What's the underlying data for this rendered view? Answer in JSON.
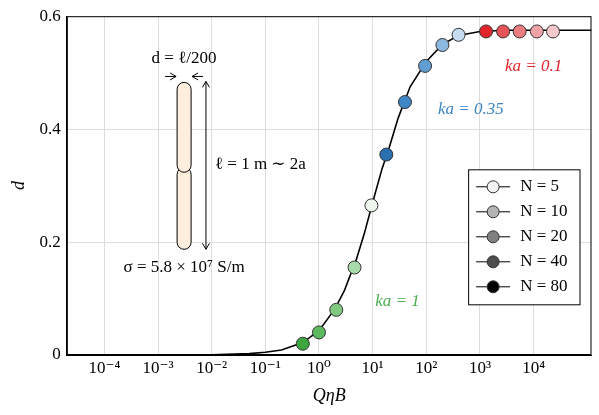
{
  "chart_data": {
    "type": "scatter",
    "x_label": "QηB",
    "y_label": "d",
    "log": "x",
    "grid": true,
    "legend": "right",
    "xlim": [
      2e-05,
      120000
    ],
    "ylim": [
      0,
      0.6
    ],
    "xticks": [
      {
        "value": 0.0001,
        "label": "10⁻⁴"
      },
      {
        "value": 0.001,
        "label": "10⁻³"
      },
      {
        "value": 0.01,
        "label": "10⁻²"
      },
      {
        "value": 0.1,
        "label": "10⁻¹"
      },
      {
        "value": 1,
        "label": "10⁰"
      },
      {
        "value": 10,
        "label": "10¹"
      },
      {
        "value": 100,
        "label": "10²"
      },
      {
        "value": 1000,
        "label": "10³"
      },
      {
        "value": 10000,
        "label": "10⁴"
      }
    ],
    "yticks": [
      0,
      0.2,
      0.4,
      0.6
    ],
    "series": [
      {
        "type": "line",
        "color": "#000000",
        "line_style": "solid",
        "x": [
          2e-05,
          0.0001,
          0.001,
          0.01,
          0.05,
          0.1,
          0.2,
          0.5,
          1,
          2,
          3,
          5,
          7,
          10,
          15,
          20,
          30,
          50,
          100,
          200,
          400,
          1000,
          3000,
          120000
        ],
        "values": [
          0,
          0,
          5e-05,
          0.0005,
          0.0024,
          0.005,
          0.009,
          0.022,
          0.043,
          0.082,
          0.115,
          0.17,
          0.215,
          0.27,
          0.33,
          0.365,
          0.42,
          0.475,
          0.52,
          0.55,
          0.566,
          0.573,
          0.575,
          0.575
        ]
      },
      {
        "name": "N = 5",
        "type": "scatter",
        "marker": "circle",
        "color": "#f2f2f2",
        "x": [
          9.5,
          400,
          23000
        ],
        "values": [
          0.265,
          0.567,
          0.573
        ],
        "colors": [
          "#eef6ee",
          "#c6dcf0",
          "#f5c9cb"
        ]
      },
      {
        "name": "N = 10",
        "type": "scatter",
        "marker": "circle",
        "color": "#b3b3b3",
        "x": [
          4.6,
          200,
          11500
        ],
        "values": [
          0.155,
          0.549,
          0.573
        ],
        "colors": [
          "#a9daa9",
          "#8db8e0",
          "#efa3a6"
        ]
      },
      {
        "name": "N = 20",
        "type": "scatter",
        "marker": "circle",
        "color": "#808080",
        "x": [
          2.1,
          95,
          5500
        ],
        "values": [
          0.08,
          0.512,
          0.573
        ],
        "colors": [
          "#80c980",
          "#609dd3",
          "#eb7c80"
        ]
      },
      {
        "name": "N = 40",
        "type": "scatter",
        "marker": "circle",
        "color": "#4d4d4d",
        "x": [
          1,
          40,
          2700
        ],
        "values": [
          0.04,
          0.448,
          0.573
        ],
        "colors": [
          "#5db95d",
          "#3f86c7",
          "#e65358"
        ]
      },
      {
        "name": "N = 80",
        "type": "scatter",
        "marker": "circle",
        "color": "#000000",
        "x": [
          0.5,
          18,
          1300
        ],
        "values": [
          0.02,
          0.355,
          0.573
        ],
        "colors": [
          "#3ea63e",
          "#2a6fb0",
          "#e3242b"
        ]
      }
    ],
    "annotations": [
      {
        "text": "ka = 0.1",
        "x": 10000,
        "y": 0.51,
        "color": "#e3242b"
      },
      {
        "text": "ka = 0.35",
        "x": 680,
        "y": 0.435,
        "color": "#3d85c6"
      },
      {
        "text": "ka = 1",
        "x": 29,
        "y": 0.095,
        "color": "#4caf50"
      }
    ],
    "inset": {
      "labels": [
        "d = ℓ/200",
        "ℓ = 1 m ∼ 2a",
        "σ = 5.8 × 10⁷ S/m"
      ]
    }
  }
}
